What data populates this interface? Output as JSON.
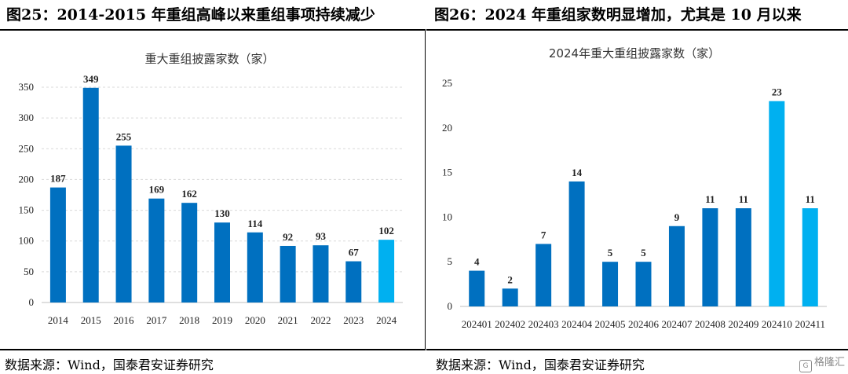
{
  "left": {
    "heading": "图25：2014-2015 年重组高峰以来重组事项持续减少",
    "source": "数据来源：Wind，国泰君安证券研究"
  },
  "right": {
    "heading": "图26：2024 年重组家数明显增加，尤其是 10 月以来",
    "source": "数据来源：Wind，国泰君安证券研究"
  },
  "watermark": {
    "text": "格隆汇",
    "icon": "logo-icon"
  },
  "colors": {
    "bar": "#0070C0",
    "highlight": "#00B0F0"
  },
  "chart_data": [
    {
      "type": "bar",
      "title": "重大重组披露家数（家）",
      "categories": [
        "2014",
        "2015",
        "2016",
        "2017",
        "2018",
        "2019",
        "2020",
        "2021",
        "2022",
        "2023",
        "2024"
      ],
      "values": [
        187,
        349,
        255,
        169,
        162,
        130,
        114,
        92,
        93,
        67,
        102
      ],
      "highlight_index": 10,
      "ylim": [
        0,
        350
      ],
      "yticks": [
        0,
        50,
        100,
        150,
        200,
        250,
        300,
        350
      ],
      "grid": true
    },
    {
      "type": "bar",
      "title": "2024年重大重组披露家数（家）",
      "categories": [
        "202401",
        "202402",
        "202403",
        "202404",
        "202405",
        "202406",
        "202407",
        "202408",
        "202409",
        "202410",
        "202411"
      ],
      "values": [
        4,
        2,
        7,
        14,
        5,
        5,
        9,
        11,
        11,
        23,
        11
      ],
      "highlight_index": [
        9,
        10
      ],
      "ylim": [
        0,
        25
      ],
      "yticks": [
        0,
        5,
        10,
        15,
        20,
        25
      ],
      "grid": false
    }
  ]
}
